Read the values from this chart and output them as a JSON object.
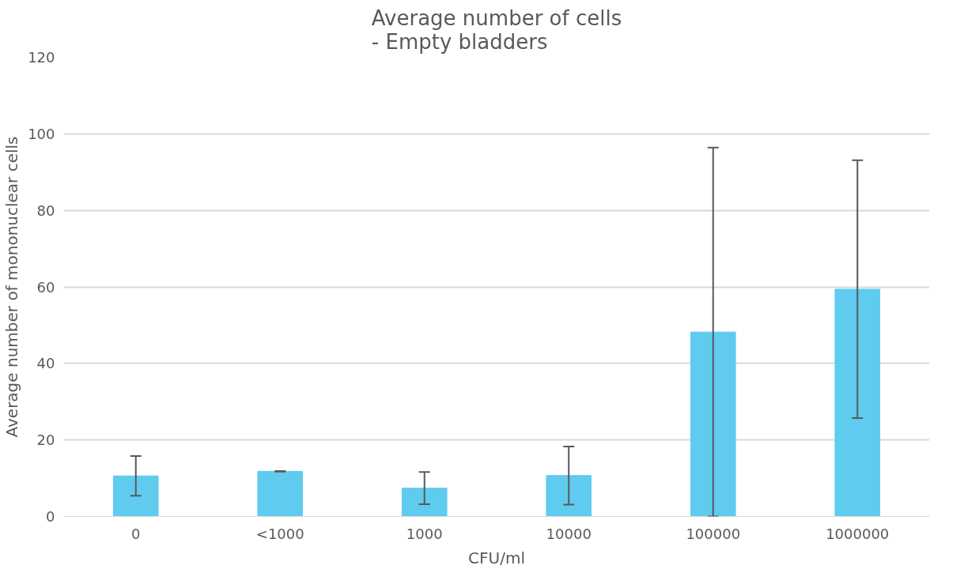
{
  "chart_data": {
    "type": "bar",
    "title": "Average number of cells\n- Empty bladders",
    "xlabel": "CFU/ml",
    "ylabel": "Average number of mononuclear cells",
    "categories": [
      "0",
      "<1000",
      "1000",
      "10000",
      "100000",
      "1000000"
    ],
    "values": [
      10.6,
      11.8,
      7.4,
      10.7,
      48.2,
      59.4
    ],
    "errors": [
      5.2,
      0.1,
      4.2,
      7.6,
      48.2,
      33.7
    ],
    "color": "#5ecbef",
    "ylim": [
      0,
      120
    ],
    "yticks": [
      0,
      20,
      40,
      60,
      80,
      100,
      120
    ],
    "grid": "y"
  }
}
